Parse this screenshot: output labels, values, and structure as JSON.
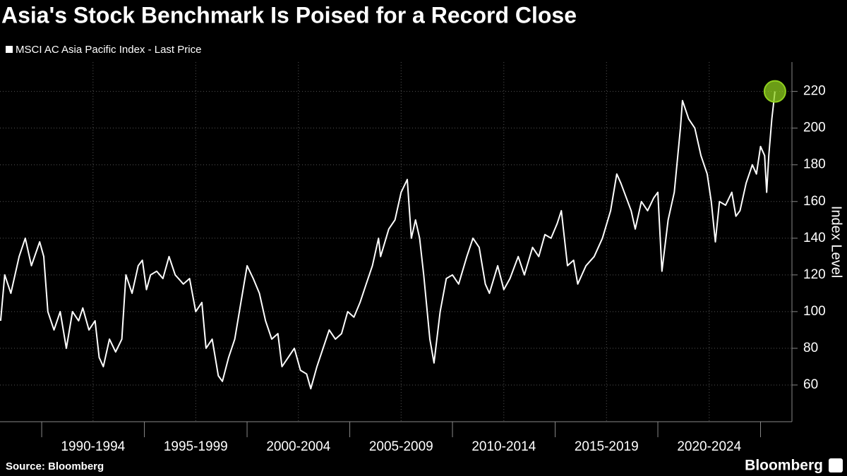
{
  "chart_data": {
    "type": "line",
    "title": "Asia's Stock Benchmark Is Poised for a Record Close",
    "y_label": "Index Level",
    "source": "Source: Bloomberg",
    "brand": "Bloomberg",
    "xlim": [
      1987.97,
      2026.46
    ],
    "ylim": [
      40,
      236
    ],
    "yticks": [
      60,
      80,
      100,
      120,
      140,
      160,
      180,
      200,
      220
    ],
    "xticks": [
      1990,
      1995,
      2000,
      2005,
      2010,
      2015,
      2020,
      2025
    ],
    "xtick_labels": [
      "1990-1994",
      "1995-1999",
      "2000-2004",
      "2005-2009",
      "2010-2014",
      "2015-2019",
      "2020-2024"
    ],
    "grid": true,
    "highlight_color": "#8fd01e",
    "x": [
      1988.0,
      1988.2,
      1988.5,
      1988.9,
      1989.2,
      1989.5,
      1989.9,
      1990.1,
      1990.3,
      1990.6,
      1990.9,
      1991.2,
      1991.5,
      1991.8,
      1992.0,
      1992.3,
      1992.6,
      1992.8,
      1993.0,
      1993.3,
      1993.6,
      1993.9,
      1994.1,
      1994.4,
      1994.7,
      1994.9,
      1995.1,
      1995.3,
      1995.6,
      1995.9,
      1996.2,
      1996.5,
      1996.9,
      1997.2,
      1997.5,
      1997.8,
      1998.0,
      1998.3,
      1998.6,
      1998.8,
      1999.1,
      1999.4,
      1999.7,
      2000.0,
      2000.3,
      2000.6,
      2000.9,
      2001.2,
      2001.5,
      2001.7,
      2002.0,
      2002.3,
      2002.6,
      2002.9,
      2003.1,
      2003.4,
      2003.7,
      2004.0,
      2004.3,
      2004.6,
      2004.9,
      2005.2,
      2005.5,
      2005.8,
      2006.1,
      2006.4,
      2006.5,
      2006.9,
      2007.2,
      2007.5,
      2007.8,
      2008.0,
      2008.2,
      2008.4,
      2008.6,
      2008.9,
      2009.1,
      2009.4,
      2009.7,
      2010.0,
      2010.3,
      2010.7,
      2011.0,
      2011.3,
      2011.6,
      2011.8,
      2012.2,
      2012.5,
      2012.8,
      2013.2,
      2013.5,
      2013.9,
      2014.2,
      2014.5,
      2014.8,
      2015.1,
      2015.3,
      2015.6,
      2015.9,
      2016.1,
      2016.5,
      2016.9,
      2017.3,
      2017.7,
      2018.0,
      2018.2,
      2018.7,
      2018.9,
      2019.2,
      2019.5,
      2019.8,
      2020.0,
      2020.2,
      2020.5,
      2020.8,
      2021.1,
      2021.2,
      2021.5,
      2021.8,
      2022.1,
      2022.4,
      2022.6,
      2022.8,
      2023.0,
      2023.3,
      2023.6,
      2023.8,
      2024.0,
      2024.3,
      2024.6,
      2024.8,
      2025.0,
      2025.2,
      2025.3,
      2025.4,
      2025.55,
      2025.7
    ],
    "series": [
      {
        "name": "MSCI AC Asia Pacific Index - Last Price",
        "color": "#ffffff",
        "values": [
          95,
          120,
          110,
          130,
          140,
          125,
          138,
          130,
          100,
          90,
          100,
          80,
          100,
          95,
          102,
          90,
          95,
          75,
          70,
          85,
          78,
          85,
          120,
          110,
          125,
          128,
          112,
          120,
          122,
          118,
          130,
          120,
          115,
          118,
          100,
          105,
          80,
          85,
          65,
          62,
          75,
          85,
          105,
          125,
          118,
          110,
          95,
          85,
          88,
          70,
          75,
          80,
          68,
          66,
          58,
          70,
          80,
          90,
          85,
          88,
          100,
          97,
          105,
          115,
          125,
          140,
          130,
          145,
          150,
          165,
          172,
          140,
          150,
          140,
          120,
          85,
          72,
          100,
          118,
          120,
          115,
          130,
          140,
          135,
          115,
          110,
          125,
          112,
          118,
          130,
          120,
          135,
          130,
          142,
          140,
          148,
          155,
          125,
          128,
          115,
          125,
          130,
          140,
          155,
          175,
          170,
          155,
          145,
          160,
          155,
          162,
          165,
          122,
          150,
          165,
          200,
          215,
          205,
          200,
          185,
          175,
          160,
          138,
          160,
          158,
          165,
          152,
          155,
          170,
          180,
          175,
          190,
          185,
          165,
          185,
          205,
          220
        ]
      }
    ]
  }
}
